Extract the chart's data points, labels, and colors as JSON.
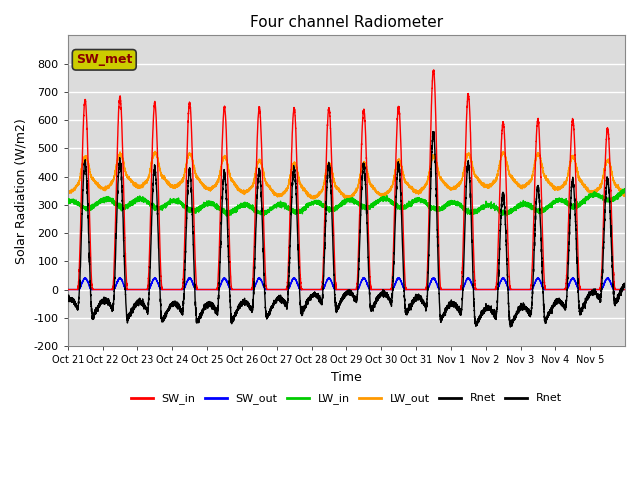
{
  "title": "Four channel Radiometer",
  "xlabel": "Time",
  "ylabel": "Solar Radiation (W/m2)",
  "ylim": [
    -200,
    900
  ],
  "yticks": [
    -200,
    -100,
    0,
    100,
    200,
    300,
    400,
    500,
    600,
    700,
    800
  ],
  "plot_bg_color": "#dcdcdc",
  "n_days": 16,
  "annotation_text": "SW_met",
  "annotation_box_color": "#cccc00",
  "annotation_text_color": "#880000",
  "legend_labels": [
    "SW_in",
    "SW_out",
    "LW_in",
    "LW_out",
    "Rnet",
    "Rnet"
  ],
  "legend_colors": [
    "#ff0000",
    "#0000ff",
    "#00cc00",
    "#ff9900",
    "#000000",
    "#000000"
  ],
  "colors": {
    "SW_in": "#ff0000",
    "SW_out": "#0000ff",
    "LW_in": "#00cc00",
    "LW_out": "#ff9900",
    "Rnet": "#000000"
  },
  "xtick_labels": [
    "Oct 21",
    "Oct 22",
    "Oct 23",
    "Oct 24",
    "Oct 25",
    "Oct 26",
    "Oct 27",
    "Oct 28",
    "Oct 29",
    "Oct 30",
    "Oct 31",
    "Nov 1",
    "Nov 2",
    "Nov 3",
    "Nov 4",
    "Nov 5"
  ],
  "grid_color": "#ffffff",
  "SW_in_peaks": [
    670,
    680,
    660,
    660,
    645,
    645,
    640,
    640,
    635,
    645,
    775,
    690,
    590,
    600,
    600,
    570
  ],
  "LW_out_base": 370,
  "LW_in_base": 295
}
